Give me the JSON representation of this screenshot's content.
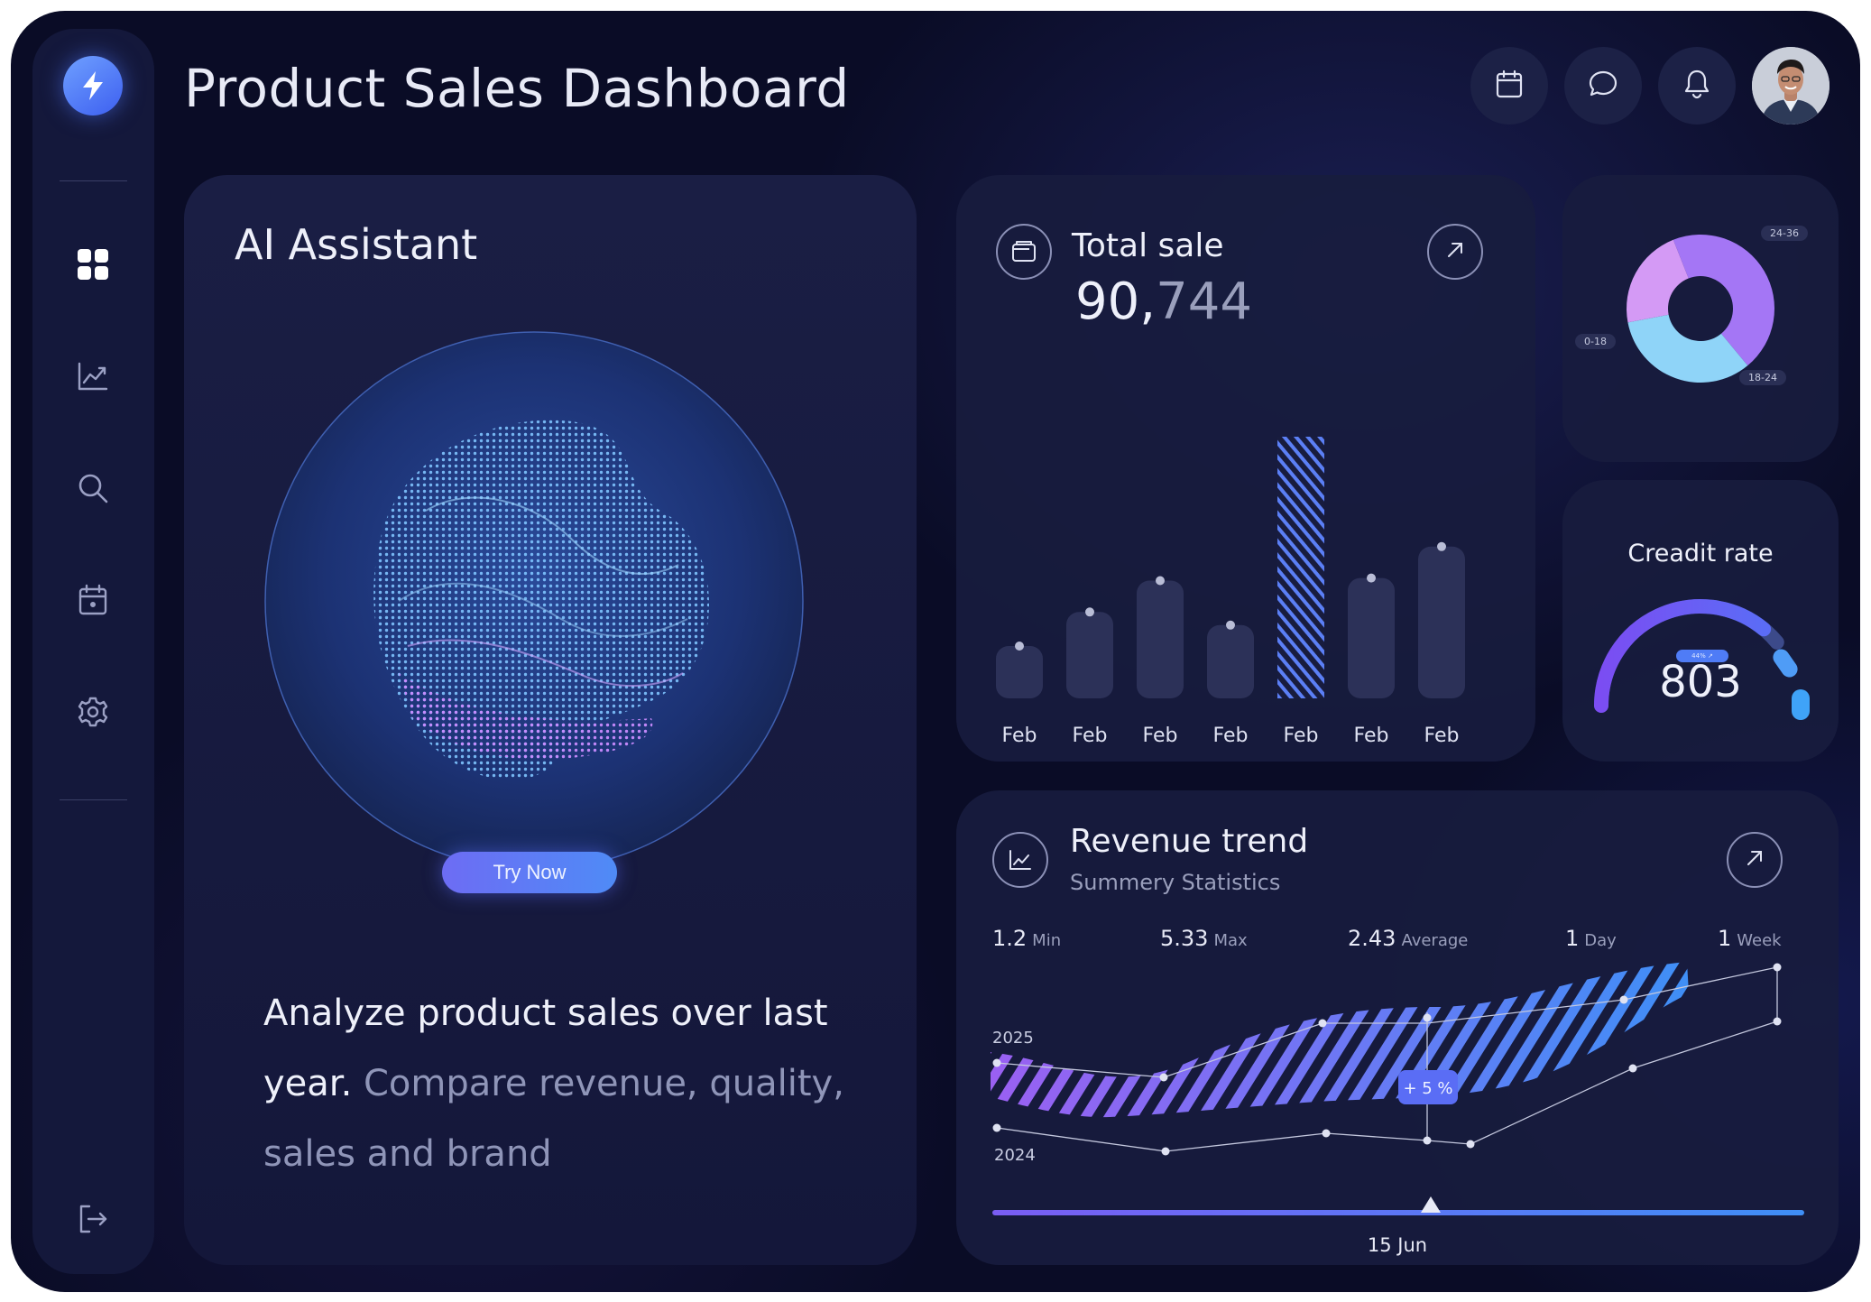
{
  "header": {
    "title": "Product Sales Dashboard",
    "buttons": [
      {
        "icon": "calendar-icon"
      },
      {
        "icon": "chat-icon"
      },
      {
        "icon": "bell-icon"
      }
    ]
  },
  "sidebar": {
    "logo_icon": "bolt-icon",
    "items": [
      {
        "icon": "dashboard-icon",
        "active": true
      },
      {
        "icon": "chart-icon"
      },
      {
        "icon": "search-icon"
      },
      {
        "icon": "calendar-icon"
      },
      {
        "icon": "gear-icon"
      }
    ],
    "footer_icon": "logout-icon"
  },
  "ai_assistant": {
    "title": "AI Assistant",
    "button_label": "Try Now",
    "description_lead": "Analyze product sales over last year.",
    "description_rest": "Compare revenue, quality, sales and brand"
  },
  "total_sale": {
    "title": "Total sale",
    "value_main": "90,",
    "value_rest": "744",
    "bars": [
      {
        "label": "Feb",
        "value": 0.2,
        "highlighted": false
      },
      {
        "label": "Feb",
        "value": 0.33,
        "highlighted": false
      },
      {
        "label": "Feb",
        "value": 0.45,
        "highlighted": false
      },
      {
        "label": "Feb",
        "value": 0.28,
        "highlighted": false
      },
      {
        "label": "Feb",
        "value": 1.0,
        "highlighted": true
      },
      {
        "label": "Feb",
        "value": 0.46,
        "highlighted": false
      },
      {
        "label": "Feb",
        "value": 0.58,
        "highlighted": false
      }
    ]
  },
  "age_donut": {
    "segments": [
      {
        "label": "24-36",
        "color": "#a476f5",
        "share": 0.45
      },
      {
        "label": "18-24",
        "color": "#8fd4f8",
        "share": 0.33
      },
      {
        "label": "0-18",
        "color": "#d49af5",
        "share": 0.22
      }
    ]
  },
  "credit_rate": {
    "title": "Creadit rate",
    "value": "803",
    "badge": "44% ↗",
    "level": 0.72
  },
  "revenue_trend": {
    "title": "Revenue trend",
    "subtitle": "Summery Statistics",
    "stats": [
      {
        "value": "1.2",
        "label": "Min"
      },
      {
        "value": "5.33",
        "label": "Max"
      },
      {
        "value": "2.43",
        "label": "Average"
      },
      {
        "value": "1",
        "label": "Day"
      },
      {
        "value": "1",
        "label": "Week"
      }
    ],
    "series_labels": {
      "upper": "2025",
      "lower": "2024"
    },
    "badge": "+ 5 %",
    "date": "15 Jun",
    "slider_position": 0.54
  },
  "colors": {
    "accent_blue": "#4f8bf6",
    "accent_purple": "#8a5cf6",
    "card_bg": "#181c3e"
  }
}
